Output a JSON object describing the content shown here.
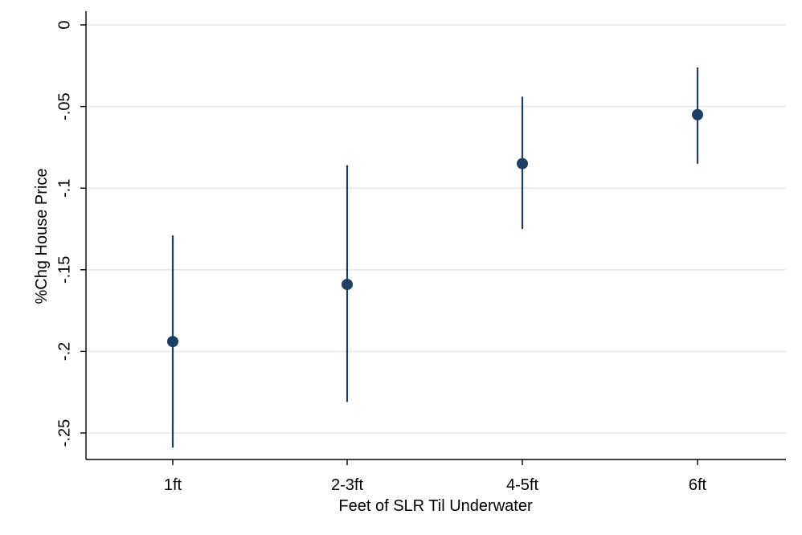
{
  "chart_data": {
    "type": "scatter",
    "title": "",
    "xlabel": "Feet of SLR Til Underwater",
    "ylabel": "%Chg House Price",
    "categories": [
      "1ft",
      "2-3ft",
      "4-5ft",
      "6ft"
    ],
    "series": [
      {
        "estimates": [
          -0.194,
          -0.159,
          -0.085,
          -0.055
        ],
        "ci_low": [
          -0.259,
          -0.231,
          -0.125,
          -0.085
        ],
        "ci_high": [
          -0.129,
          -0.086,
          -0.044,
          -0.026
        ]
      }
    ],
    "y_ticks": [
      0,
      -0.05,
      -0.1,
      -0.15,
      -0.2,
      -0.25
    ],
    "y_tick_labels": [
      "0",
      "-.05",
      "-.1",
      "-.15",
      "-.2",
      "-.25"
    ],
    "ylim": [
      -0.265,
      0.008
    ],
    "grid": true,
    "colors": {
      "marker": "#1b3f66",
      "grid": "#e6ebec",
      "axis": "#000000"
    }
  }
}
